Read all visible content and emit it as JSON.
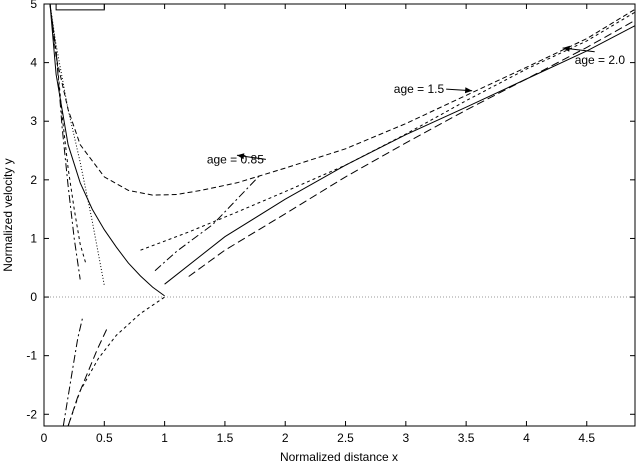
{
  "chart_data": {
    "type": "line",
    "title": "",
    "xlabel": "Normalized distance x",
    "ylabel": "Normalized velocity y",
    "xlim": [
      0,
      4.9
    ],
    "ylim": [
      -2.2,
      5
    ],
    "grid": false,
    "x_ticks": [
      0,
      0.5,
      1,
      1.5,
      2,
      2.5,
      3,
      3.5,
      4,
      4.5
    ],
    "x_tick_labels": [
      "0",
      "0.5",
      "1",
      "1.5",
      "2",
      "2.5",
      "3",
      "3.5",
      "4",
      "4.5"
    ],
    "y_ticks": [
      -2,
      -1,
      0,
      1,
      2,
      3,
      4,
      5
    ],
    "y_tick_labels": [
      "-2",
      "-1",
      "0",
      "1",
      "2",
      "3",
      "4",
      "5"
    ],
    "zero_line": {
      "y": 0,
      "style": "dotted"
    },
    "series": [
      {
        "style": "solid",
        "points": [
          [
            0.05,
            5.0
          ],
          [
            0.1,
            3.8
          ],
          [
            0.2,
            2.6
          ],
          [
            0.3,
            1.95
          ],
          [
            0.4,
            1.5
          ],
          [
            0.5,
            1.15
          ],
          [
            0.6,
            0.85
          ],
          [
            0.7,
            0.58
          ],
          [
            0.8,
            0.36
          ],
          [
            0.9,
            0.17
          ],
          [
            1.0,
            0.02
          ]
        ]
      },
      {
        "style": "solid",
        "points": [
          [
            1.0,
            0.22
          ],
          [
            1.5,
            1.03
          ],
          [
            2.0,
            1.67
          ],
          [
            2.5,
            2.25
          ],
          [
            3.0,
            2.77
          ],
          [
            3.5,
            3.24
          ],
          [
            4.0,
            3.72
          ],
          [
            4.5,
            4.2
          ],
          [
            4.9,
            4.63
          ]
        ]
      },
      {
        "style": "dashed",
        "points": [
          [
            0.05,
            5.0
          ],
          [
            0.1,
            4.1
          ],
          [
            0.2,
            3.2
          ],
          [
            0.3,
            2.6
          ],
          [
            0.5,
            2.05
          ],
          [
            0.7,
            1.82
          ],
          [
            0.9,
            1.74
          ],
          [
            1.1,
            1.75
          ],
          [
            1.3,
            1.82
          ],
          [
            1.6,
            1.95
          ],
          [
            2.0,
            2.2
          ],
          [
            2.5,
            2.53
          ],
          [
            3.0,
            2.96
          ],
          [
            3.5,
            3.44
          ],
          [
            4.0,
            3.92
          ],
          [
            4.5,
            4.41
          ],
          [
            4.9,
            4.91
          ]
        ]
      },
      {
        "style": "short-dashed",
        "points": [
          [
            0.8,
            0.8
          ],
          [
            1.2,
            1.11
          ],
          [
            1.6,
            1.45
          ],
          [
            2.0,
            1.8
          ],
          [
            2.5,
            2.25
          ],
          [
            3.0,
            2.78
          ],
          [
            3.5,
            3.35
          ],
          [
            4.0,
            3.89
          ],
          [
            4.5,
            4.37
          ],
          [
            4.9,
            4.86
          ]
        ]
      },
      {
        "style": "long-dash",
        "points": [
          [
            1.2,
            0.35
          ],
          [
            1.5,
            0.8
          ],
          [
            2.0,
            1.42
          ],
          [
            2.5,
            2.05
          ],
          [
            3.0,
            2.63
          ],
          [
            3.5,
            3.19
          ],
          [
            4.0,
            3.72
          ],
          [
            4.5,
            4.26
          ],
          [
            4.9,
            4.72
          ]
        ]
      },
      {
        "style": "dash-dot",
        "points": [
          [
            0.92,
            0.45
          ],
          [
            1.1,
            0.78
          ],
          [
            1.4,
            1.24
          ],
          [
            1.8,
            2.1
          ]
        ]
      },
      {
        "style": "short-dashed",
        "points": [
          [
            0.05,
            5.0
          ],
          [
            0.1,
            4.2
          ],
          [
            0.15,
            3.1
          ],
          [
            0.2,
            2.2
          ],
          [
            0.25,
            1.5
          ],
          [
            0.3,
            0.9
          ],
          [
            0.35,
            0.55
          ]
        ]
      },
      {
        "style": "dash-dot",
        "points": [
          [
            0.05,
            5.0
          ],
          [
            0.1,
            4.2
          ],
          [
            0.15,
            2.9
          ],
          [
            0.2,
            1.9
          ],
          [
            0.25,
            1.0
          ],
          [
            0.3,
            0.3
          ]
        ]
      },
      {
        "style": "dotted",
        "points": [
          [
            0.05,
            5.0
          ],
          [
            0.1,
            4.3
          ],
          [
            0.2,
            3.2
          ],
          [
            0.3,
            2.3
          ],
          [
            0.4,
            1.3
          ],
          [
            0.5,
            0.2
          ]
        ]
      },
      {
        "style": "short-dashed",
        "points": [
          [
            0.2,
            -2.2
          ],
          [
            0.3,
            -1.6
          ],
          [
            0.45,
            -1.05
          ],
          [
            0.6,
            -0.65
          ],
          [
            0.8,
            -0.28
          ],
          [
            1.0,
            0.0
          ]
        ]
      },
      {
        "style": "dash-dot",
        "points": [
          [
            0.16,
            -2.2
          ],
          [
            0.2,
            -1.7
          ],
          [
            0.24,
            -1.2
          ],
          [
            0.28,
            -0.7
          ],
          [
            0.32,
            -0.35
          ]
        ]
      },
      {
        "style": "long-dash",
        "points": [
          [
            0.2,
            -2.2
          ],
          [
            0.28,
            -1.7
          ],
          [
            0.36,
            -1.3
          ],
          [
            0.44,
            -0.9
          ],
          [
            0.52,
            -0.55
          ]
        ]
      },
      {
        "style": "solid",
        "points": [
          [
            0.1,
            5.0
          ],
          [
            0.1,
            4.9
          ],
          [
            0.5,
            4.9
          ],
          [
            0.5,
            5.0
          ]
        ]
      }
    ],
    "annotations": [
      {
        "text": "age = 0.85",
        "x": 1.35,
        "y": 2.28,
        "arrow_to": [
          1.6,
          2.42
        ]
      },
      {
        "text": "age = 1.5",
        "x": 2.9,
        "y": 3.48,
        "arrow_to": [
          3.55,
          3.52
        ]
      },
      {
        "text": "age = 2.0",
        "x": 4.4,
        "y": 3.98,
        "arrow_to": [
          4.3,
          4.25
        ]
      }
    ]
  }
}
